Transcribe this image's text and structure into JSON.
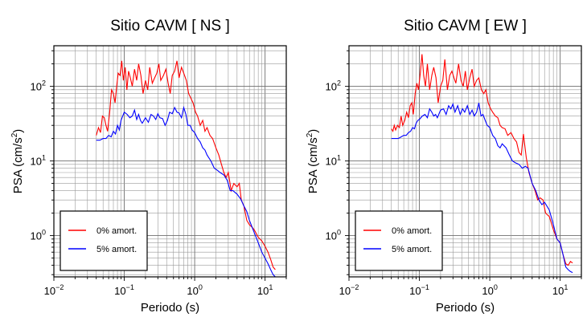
{
  "chart_data": [
    {
      "type": "line",
      "title": "Sitio CAVM [ NS ]",
      "xlabel": "Periodo (s)",
      "ylabel_base": "PSA (cm/s",
      "ylabel_sup": "2",
      "ylabel_close": ")",
      "x_scale": "log",
      "y_scale": "log",
      "xlim": [
        0.01,
        20
      ],
      "ylim": [
        0.28,
        350
      ],
      "grid": true,
      "legend_position": "bottom-left",
      "x_ticks": [
        {
          "value": 0.01,
          "base": "10",
          "exp": "−2"
        },
        {
          "value": 0.1,
          "base": "10",
          "exp": "−1"
        },
        {
          "value": 1,
          "base": "10",
          "exp": "0"
        },
        {
          "value": 10,
          "base": "10",
          "exp": "1"
        }
      ],
      "y_ticks": [
        {
          "value": 1,
          "base": "10",
          "exp": "0"
        },
        {
          "value": 10,
          "base": "10",
          "exp": "1"
        },
        {
          "value": 100,
          "base": "10",
          "exp": "2"
        }
      ],
      "series": [
        {
          "name": "0% amort.",
          "color": "#ff0000",
          "x": [
            0.04,
            0.043,
            0.046,
            0.049,
            0.052,
            0.055,
            0.058,
            0.062,
            0.066,
            0.07,
            0.074,
            0.078,
            0.082,
            0.087,
            0.092,
            0.097,
            0.103,
            0.109,
            0.115,
            0.122,
            0.13,
            0.14,
            0.15,
            0.16,
            0.172,
            0.185,
            0.2,
            0.215,
            0.23,
            0.25,
            0.27,
            0.29,
            0.31,
            0.33,
            0.36,
            0.39,
            0.42,
            0.45,
            0.48,
            0.52,
            0.56,
            0.6,
            0.65,
            0.7,
            0.76,
            0.82,
            0.88,
            0.95,
            1.03,
            1.1,
            1.2,
            1.3,
            1.4,
            1.5,
            1.65,
            1.8,
            2.0,
            2.2,
            2.4,
            2.6,
            2.8,
            3.0,
            3.3,
            3.6,
            4.0,
            4.3,
            4.6,
            5.0,
            5.5,
            6.0,
            6.5,
            7.0,
            8.0,
            9.0,
            10.0,
            11.0,
            12.0,
            13.0,
            14.0
          ],
          "y": [
            22,
            28,
            24,
            40,
            38,
            30,
            25,
            45,
            90,
            80,
            60,
            100,
            150,
            140,
            220,
            120,
            180,
            90,
            160,
            130,
            100,
            170,
            120,
            200,
            140,
            80,
            120,
            90,
            180,
            110,
            130,
            150,
            200,
            120,
            140,
            170,
            110,
            80,
            140,
            160,
            220,
            130,
            180,
            150,
            120,
            80,
            70,
            60,
            45,
            40,
            30,
            35,
            25,
            28,
            22,
            20,
            15,
            12,
            9,
            7,
            6,
            7,
            4,
            5,
            4.5,
            5,
            3,
            2.5,
            1.6,
            1.4,
            1.3,
            1.2,
            0.95,
            0.85,
            0.72,
            0.6,
            0.48,
            0.38,
            0.35
          ]
        },
        {
          "name": "5% amort.",
          "color": "#0000ff",
          "x": [
            0.04,
            0.045,
            0.05,
            0.055,
            0.06,
            0.065,
            0.07,
            0.075,
            0.08,
            0.085,
            0.09,
            0.095,
            0.1,
            0.11,
            0.12,
            0.13,
            0.14,
            0.15,
            0.16,
            0.17,
            0.18,
            0.2,
            0.22,
            0.24,
            0.26,
            0.28,
            0.3,
            0.32,
            0.35,
            0.38,
            0.41,
            0.44,
            0.48,
            0.52,
            0.56,
            0.6,
            0.65,
            0.7,
            0.75,
            0.8,
            0.86,
            0.92,
            1.0,
            1.1,
            1.2,
            1.3,
            1.4,
            1.5,
            1.7,
            1.9,
            2.1,
            2.3,
            2.6,
            2.9,
            3.2,
            3.5,
            4.0,
            4.5,
            5.0,
            5.5,
            6.0,
            7.0,
            8.0,
            9.0,
            10.0,
            11.0,
            12.0,
            13.0,
            14.0
          ],
          "y": [
            19,
            19,
            20,
            20,
            22,
            21,
            25,
            23,
            30,
            26,
            35,
            40,
            45,
            42,
            38,
            40,
            48,
            36,
            42,
            35,
            32,
            38,
            33,
            42,
            40,
            36,
            43,
            38,
            37,
            30,
            35,
            45,
            43,
            52,
            45,
            44,
            38,
            52,
            42,
            30,
            30,
            26,
            24,
            20,
            18,
            15,
            14,
            12,
            10,
            8,
            7.5,
            7,
            6.5,
            5.5,
            4,
            4,
            3.6,
            3.1,
            2.5,
            2.1,
            1.6,
            1.1,
            0.8,
            0.6,
            0.5,
            0.42,
            0.35,
            0.3,
            0.28
          ]
        }
      ]
    },
    {
      "type": "line",
      "title": "Sitio CAVM [ EW ]",
      "xlabel": "Periodo (s)",
      "ylabel_base": "PSA (cm/s",
      "ylabel_sup": "2",
      "ylabel_close": ")",
      "x_scale": "log",
      "y_scale": "log",
      "xlim": [
        0.01,
        20
      ],
      "ylim": [
        0.28,
        350
      ],
      "grid": true,
      "legend_position": "bottom-left",
      "x_ticks": [
        {
          "value": 0.01,
          "base": "10",
          "exp": "−2"
        },
        {
          "value": 0.1,
          "base": "10",
          "exp": "−1"
        },
        {
          "value": 1,
          "base": "10",
          "exp": "0"
        },
        {
          "value": 10,
          "base": "10",
          "exp": "1"
        }
      ],
      "y_ticks": [
        {
          "value": 1,
          "base": "10",
          "exp": "0"
        },
        {
          "value": 10,
          "base": "10",
          "exp": "1"
        },
        {
          "value": 100,
          "base": "10",
          "exp": "2"
        }
      ],
      "series": [
        {
          "name": "0% amort.",
          "color": "#ff0000",
          "x": [
            0.04,
            0.042,
            0.044,
            0.046,
            0.049,
            0.052,
            0.055,
            0.058,
            0.062,
            0.066,
            0.07,
            0.074,
            0.078,
            0.082,
            0.087,
            0.092,
            0.097,
            0.103,
            0.109,
            0.115,
            0.122,
            0.13,
            0.14,
            0.15,
            0.16,
            0.172,
            0.185,
            0.2,
            0.215,
            0.23,
            0.25,
            0.27,
            0.29,
            0.31,
            0.33,
            0.36,
            0.39,
            0.42,
            0.45,
            0.48,
            0.52,
            0.56,
            0.6,
            0.65,
            0.7,
            0.76,
            0.82,
            0.88,
            0.95,
            1.03,
            1.1,
            1.2,
            1.3,
            1.4,
            1.5,
            1.65,
            1.8,
            2.0,
            2.2,
            2.4,
            2.6,
            2.8,
            3.0,
            3.3,
            3.6,
            4.0,
            4.4,
            4.8,
            5.2,
            5.7,
            6.2,
            7.0,
            8.0,
            9.0,
            10.0,
            11.0,
            12.0,
            13.0,
            14.0,
            15.0
          ],
          "y": [
            27,
            25,
            30,
            26,
            30,
            28,
            40,
            30,
            35,
            45,
            38,
            55,
            60,
            42,
            80,
            110,
            90,
            150,
            270,
            140,
            100,
            200,
            90,
            140,
            180,
            130,
            60,
            100,
            120,
            230,
            90,
            140,
            160,
            130,
            110,
            200,
            120,
            100,
            160,
            90,
            130,
            170,
            100,
            120,
            130,
            90,
            80,
            90,
            60,
            50,
            45,
            40,
            38,
            30,
            28,
            27,
            22,
            24,
            20,
            18,
            13,
            12,
            23,
            11,
            7,
            5,
            4,
            3,
            3.2,
            3,
            2,
            1.8,
            1.2,
            0.9,
            0.8,
            0.55,
            0.42,
            0.4,
            0.45,
            0.43
          ]
        },
        {
          "name": "5% amort.",
          "color": "#0000ff",
          "x": [
            0.04,
            0.045,
            0.05,
            0.055,
            0.06,
            0.065,
            0.07,
            0.075,
            0.08,
            0.085,
            0.09,
            0.095,
            0.1,
            0.11,
            0.12,
            0.13,
            0.14,
            0.15,
            0.16,
            0.17,
            0.18,
            0.2,
            0.22,
            0.24,
            0.26,
            0.28,
            0.3,
            0.32,
            0.35,
            0.38,
            0.41,
            0.44,
            0.48,
            0.52,
            0.56,
            0.6,
            0.65,
            0.7,
            0.75,
            0.8,
            0.86,
            0.92,
            1.0,
            1.1,
            1.2,
            1.3,
            1.4,
            1.5,
            1.7,
            1.9,
            2.1,
            2.3,
            2.6,
            2.9,
            3.2,
            3.5,
            4.0,
            4.5,
            5.0,
            5.5,
            6.0,
            7.0,
            8.0,
            9.0,
            10.0,
            11.0,
            12.0,
            13.0,
            14.0,
            15.0
          ],
          "y": [
            20,
            20,
            20,
            21,
            22,
            22,
            24,
            25,
            28,
            27,
            32,
            35,
            36,
            40,
            42,
            38,
            50,
            45,
            40,
            42,
            38,
            48,
            50,
            42,
            55,
            50,
            58,
            45,
            55,
            42,
            50,
            45,
            55,
            42,
            48,
            40,
            45,
            60,
            40,
            42,
            35,
            30,
            28,
            22,
            20,
            16,
            15,
            17,
            15,
            12,
            10,
            9.5,
            9,
            8,
            8.5,
            8,
            5,
            4,
            3,
            2.6,
            2.8,
            2.2,
            1.4,
            0.9,
            0.8,
            0.55,
            0.38,
            0.35,
            0.33,
            0.32
          ]
        }
      ]
    }
  ]
}
